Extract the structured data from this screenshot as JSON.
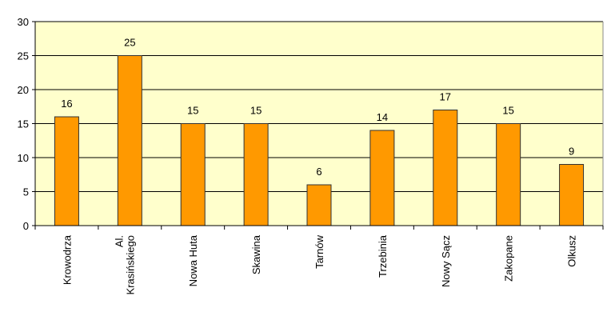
{
  "chart_data": {
    "type": "bar",
    "categories": [
      "Krowodrza",
      "Al. Krasińskiego",
      "Nowa Huta",
      "Skawina",
      "Tarnów",
      "Trzebinia",
      "Nowy Sącz",
      "Zakopane",
      "Olkusz"
    ],
    "values": [
      16,
      25,
      15,
      15,
      6,
      14,
      17,
      15,
      9
    ],
    "color": "#ff9900",
    "ylim": [
      0,
      30
    ],
    "yticks": [
      0,
      5,
      10,
      15,
      20,
      25,
      30
    ],
    "grid": true
  }
}
